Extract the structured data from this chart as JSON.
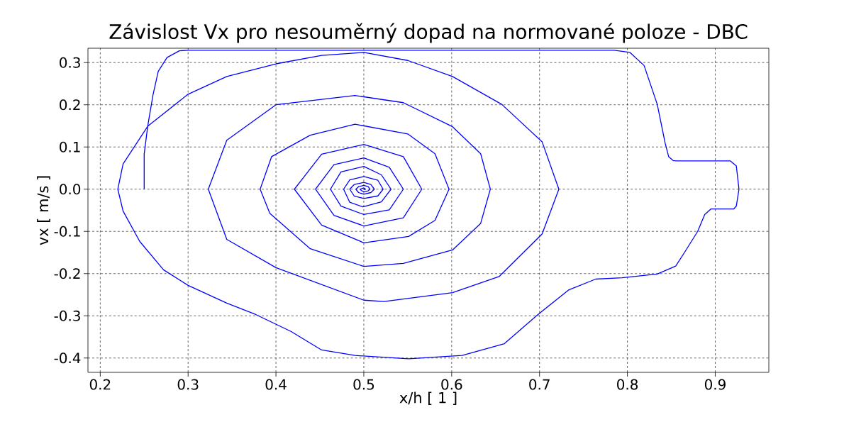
{
  "chart_data": {
    "type": "line",
    "title": "Závislost Vx pro  nesouměrný dopad  na normované poloze - DBC",
    "xlabel": "x/h [ 1 ]",
    "ylabel": "vx [ m/s ]",
    "xlim": [
      0.186,
      0.961
    ],
    "ylim": [
      -0.434,
      0.334
    ],
    "xticks": [
      0.2,
      0.3,
      0.4,
      0.5,
      0.6,
      0.7,
      0.8,
      0.9
    ],
    "yticks": [
      -0.4,
      -0.3,
      -0.2,
      -0.1,
      {
        "value": 0,
        "label": "0.0"
      },
      0.1,
      0.2,
      0.3
    ],
    "grid": true,
    "marker": "none",
    "line_style": "solid",
    "series": [
      {
        "color": "#0000ff",
        "x": [
          0.25,
          0.25,
          0.254,
          0.26,
          0.266,
          0.276,
          0.29,
          0.3,
          0.785,
          0.803,
          0.819,
          0.834,
          0.843,
          0.847,
          0.852,
          0.856,
          0.917,
          0.924,
          0.927,
          0.924,
          0.921,
          0.895,
          0.888,
          0.88,
          0.865,
          0.855,
          0.834,
          0.794,
          0.764,
          0.733,
          0.697,
          0.66,
          0.612,
          0.551,
          0.49,
          0.452,
          0.417,
          0.377,
          0.344,
          0.3,
          0.272,
          0.245,
          0.226,
          0.22,
          0.226,
          0.254,
          0.3,
          0.344,
          0.4,
          0.452,
          0.5,
          0.55,
          0.601,
          0.657,
          0.703,
          0.722,
          0.703,
          0.654,
          0.601,
          0.523,
          0.5,
          0.4,
          0.344,
          0.323,
          0.344,
          0.4,
          0.49,
          0.545,
          0.601,
          0.633,
          0.644,
          0.633,
          0.601,
          0.545,
          0.5,
          0.439,
          0.393,
          0.382,
          0.395,
          0.439,
          0.49,
          0.55,
          0.581,
          0.597,
          0.581,
          0.551,
          0.5,
          0.452,
          0.421,
          0.452,
          0.5,
          0.545,
          0.566,
          0.545,
          0.5,
          0.466,
          0.445,
          0.466,
          0.5,
          0.529,
          0.545,
          0.529,
          0.5,
          0.474,
          0.462,
          0.474,
          0.5,
          0.52,
          0.531,
          0.52,
          0.499,
          0.484,
          0.477,
          0.484,
          0.5,
          0.516,
          0.522,
          0.516,
          0.5,
          0.489,
          0.484,
          0.489,
          0.5,
          0.508,
          0.512,
          0.508,
          0.5,
          0.494,
          0.491,
          0.494,
          0.5,
          0.505,
          0.507,
          0.505,
          0.5,
          0.497,
          0.496,
          0.5,
          0.502,
          0.5
        ],
        "values": [
          0,
          0.083,
          0.149,
          0.223,
          0.279,
          0.312,
          0.328,
          0.329,
          0.329,
          0.324,
          0.293,
          0.201,
          0.109,
          0.077,
          0.068,
          0.067,
          0.067,
          0.055,
          0,
          -0.04,
          -0.047,
          -0.047,
          -0.06,
          -0.1,
          -0.15,
          -0.182,
          -0.201,
          -0.21,
          -0.213,
          -0.239,
          -0.299,
          -0.366,
          -0.394,
          -0.402,
          -0.394,
          -0.381,
          -0.337,
          -0.297,
          -0.27,
          -0.228,
          -0.191,
          -0.124,
          -0.052,
          0,
          0.06,
          0.149,
          0.225,
          0.267,
          0.297,
          0.317,
          0.324,
          0.305,
          0.267,
          0.201,
          0.112,
          0,
          -0.106,
          -0.207,
          -0.245,
          -0.266,
          -0.263,
          -0.186,
          -0.119,
          0,
          0.116,
          0.2,
          0.222,
          0.205,
          0.148,
          0.084,
          0,
          -0.081,
          -0.144,
          -0.176,
          -0.183,
          -0.141,
          -0.057,
          0,
          0.077,
          0.128,
          0.154,
          0.131,
          0.084,
          0,
          -0.074,
          -0.112,
          -0.127,
          -0.085,
          0,
          0.083,
          0.106,
          0.077,
          0,
          -0.068,
          -0.087,
          -0.062,
          0,
          0.058,
          0.074,
          0.052,
          0,
          -0.049,
          -0.06,
          -0.04,
          0,
          0.041,
          0.054,
          0.034,
          0,
          -0.03,
          -0.042,
          -0.031,
          0,
          0.022,
          0.03,
          0.021,
          0,
          -0.016,
          -0.022,
          -0.016,
          0,
          0.011,
          0.016,
          0.011,
          0,
          -0.008,
          -0.012,
          -0.008,
          0,
          0.006,
          0.009,
          0.006,
          0,
          -0.004,
          -0.006,
          -0.003,
          0,
          0.003,
          0,
          0
        ]
      }
    ]
  }
}
